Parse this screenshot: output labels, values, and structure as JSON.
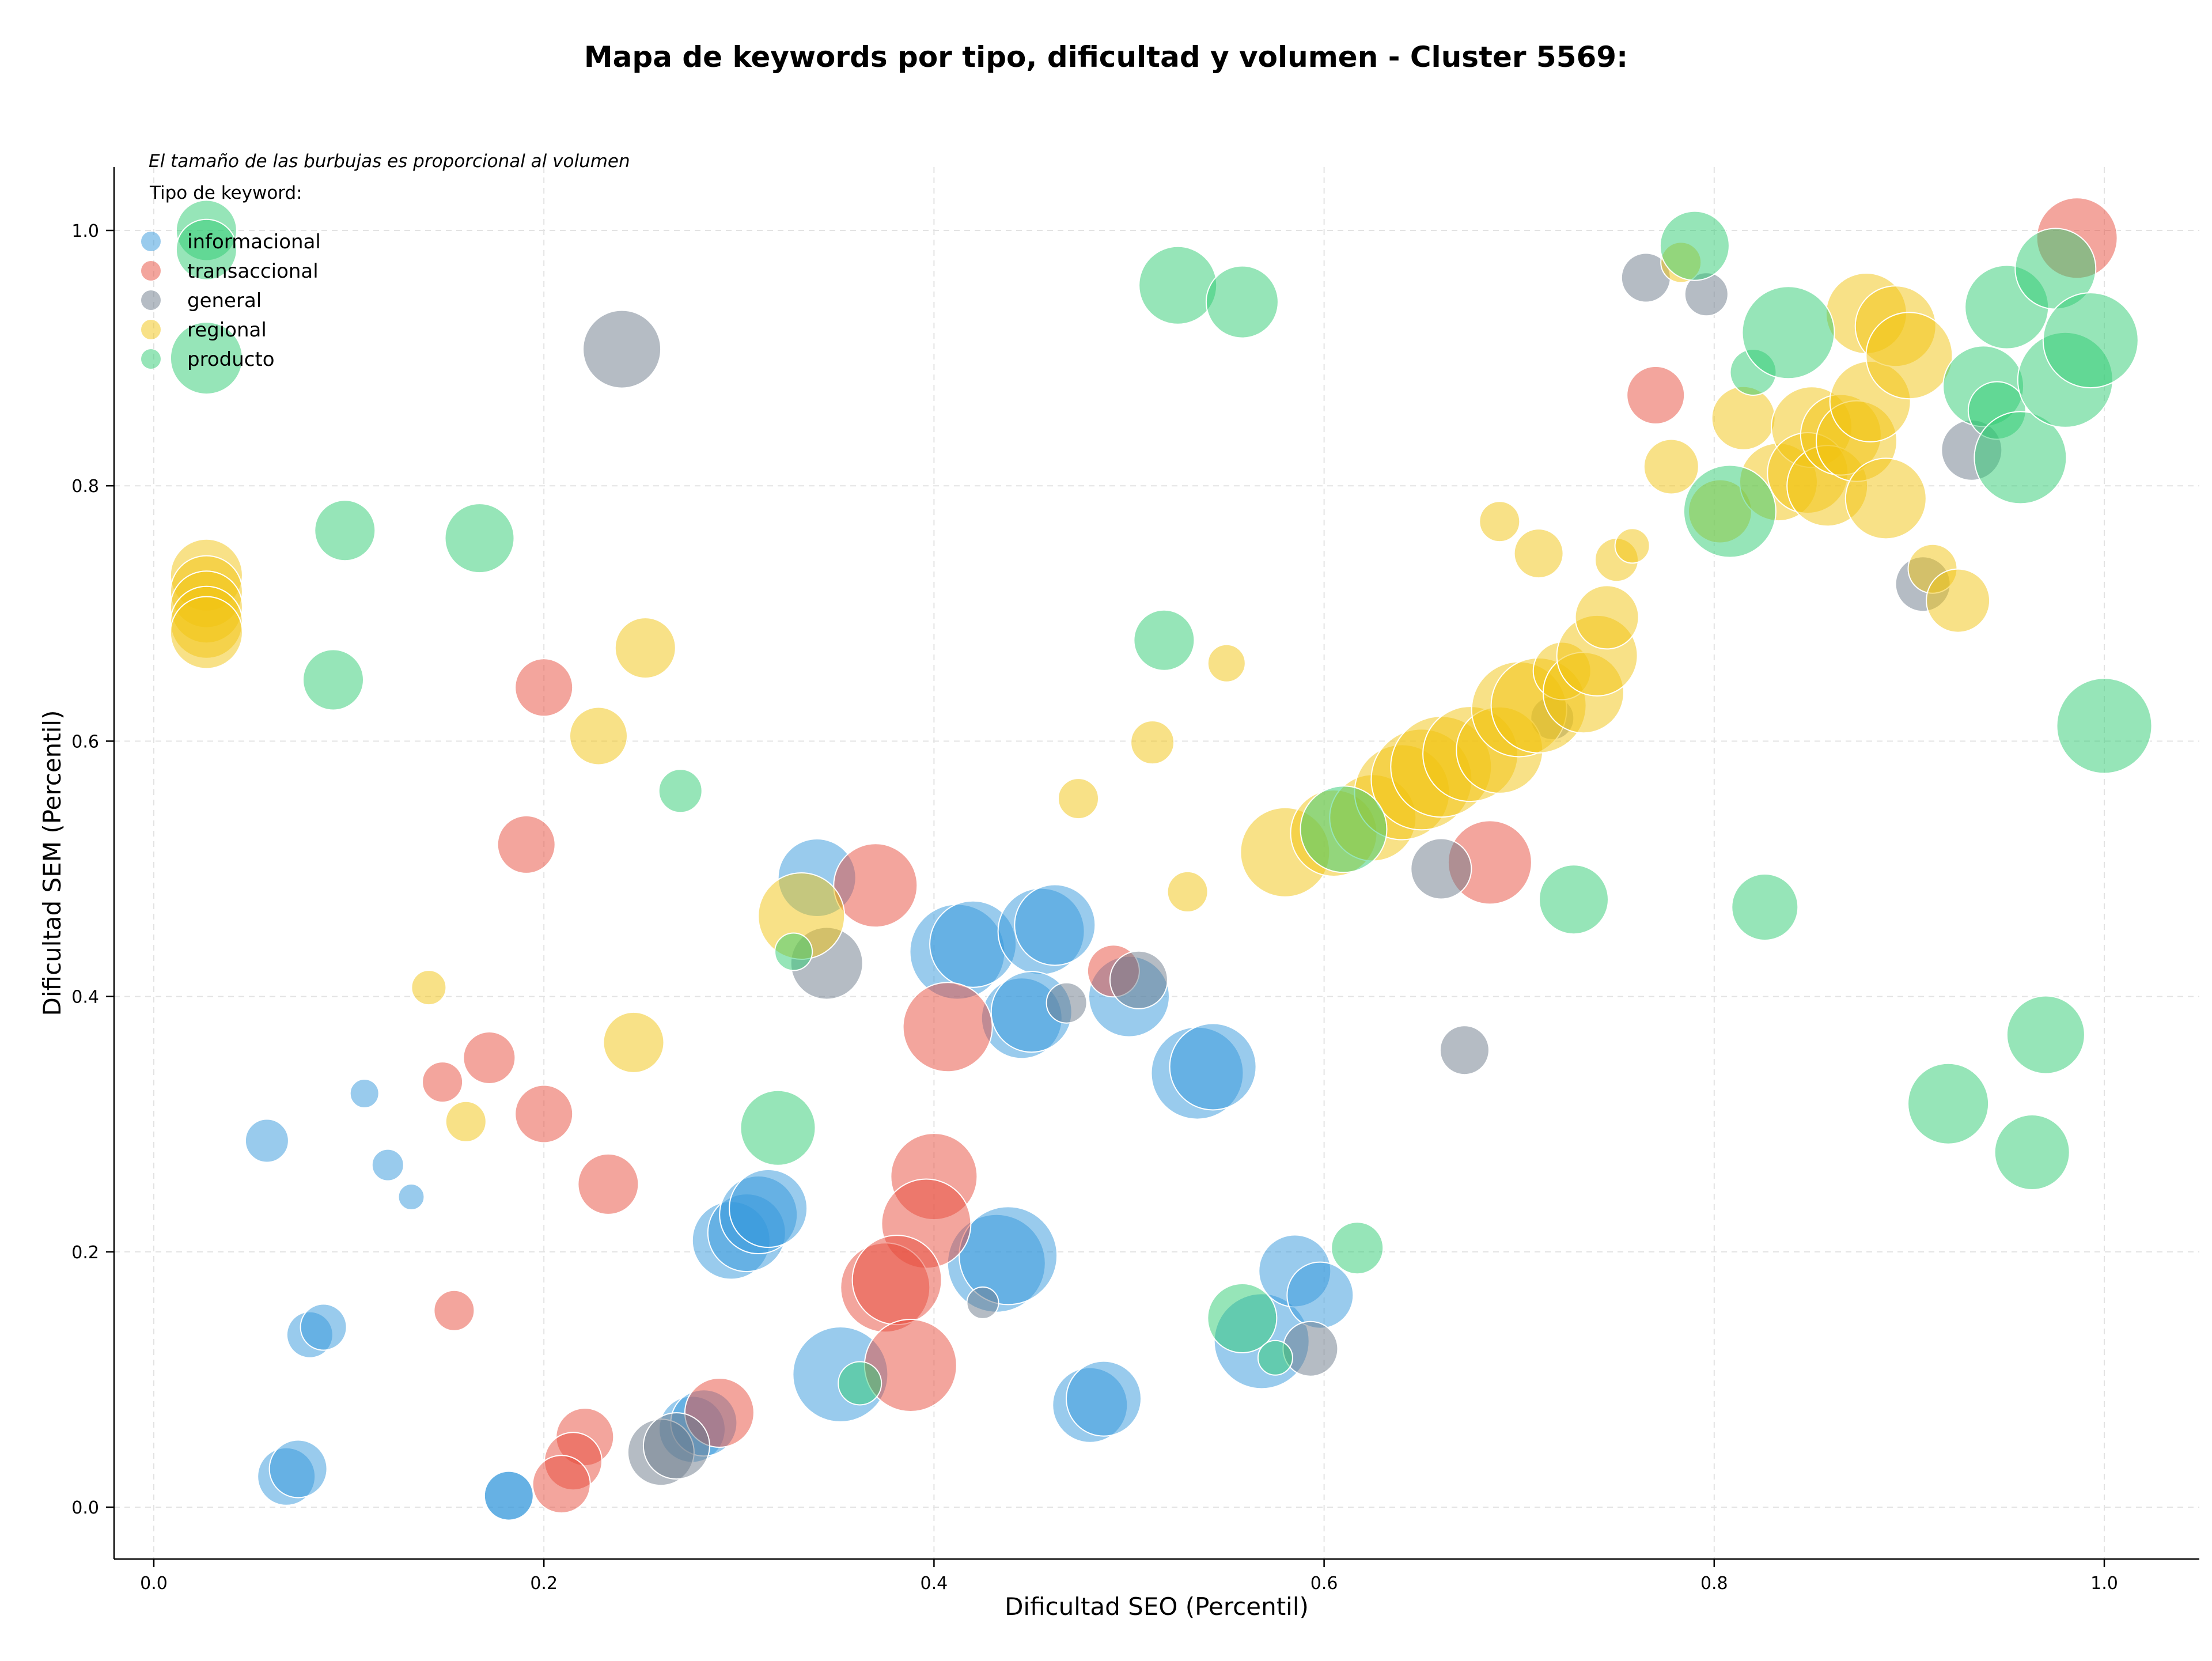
{
  "chart_data": {
    "type": "scatter",
    "title": "Mapa de keywords por tipo, dificultad y volumen - Cluster 5569:",
    "xlabel": "Dificultad SEO (Percentil)",
    "ylabel": "Dificultad SEM (Percentil)",
    "size_note": "El tamaño de las burbujas es proporcional al volumen",
    "legend_title": "Tipo de keyword:",
    "legend_position": "top-left",
    "grid": true,
    "xlim": [
      -0.02,
      1.05
    ],
    "ylim": [
      -0.04,
      1.05
    ],
    "xticks": [
      "0.0",
      "0.2",
      "0.4",
      "0.6",
      "0.8",
      "1.0"
    ],
    "yticks": [
      "0.0",
      "0.2",
      "0.4",
      "0.6",
      "0.8",
      "1.0"
    ],
    "series": [
      {
        "name": "informacional",
        "color": "#3498db",
        "points": [
          [
            0.058,
            0.287,
            15
          ],
          [
            0.108,
            0.324,
            10
          ],
          [
            0.12,
            0.268,
            11
          ],
          [
            0.132,
            0.243,
            9
          ],
          [
            0.08,
            0.135,
            16
          ],
          [
            0.087,
            0.141,
            16
          ],
          [
            0.068,
            0.024,
            20
          ],
          [
            0.074,
            0.03,
            20
          ],
          [
            0.182,
            0.009,
            17
          ],
          [
            0.182,
            0.009,
            17
          ],
          [
            0.34,
            0.493,
            27
          ],
          [
            0.412,
            0.435,
            33
          ],
          [
            0.42,
            0.441,
            30
          ],
          [
            0.455,
            0.451,
            30
          ],
          [
            0.462,
            0.456,
            28
          ],
          [
            0.445,
            0.383,
            28
          ],
          [
            0.45,
            0.388,
            28
          ],
          [
            0.5,
            0.4,
            28
          ],
          [
            0.535,
            0.34,
            32
          ],
          [
            0.543,
            0.345,
            30
          ],
          [
            0.296,
            0.209,
            27
          ],
          [
            0.304,
            0.215,
            27
          ],
          [
            0.31,
            0.229,
            27
          ],
          [
            0.315,
            0.234,
            27
          ],
          [
            0.432,
            0.191,
            34
          ],
          [
            0.438,
            0.197,
            34
          ],
          [
            0.352,
            0.104,
            33
          ],
          [
            0.276,
            0.061,
            23
          ],
          [
            0.282,
            0.066,
            23
          ],
          [
            0.48,
            0.08,
            26
          ],
          [
            0.487,
            0.085,
            26
          ],
          [
            0.568,
            0.13,
            33
          ],
          [
            0.585,
            0.185,
            25
          ],
          [
            0.598,
            0.166,
            23
          ]
        ]
      },
      {
        "name": "transaccional",
        "color": "#e74c3c",
        "points": [
          [
            0.986,
            0.994,
            28
          ],
          [
            0.77,
            0.871,
            20
          ],
          [
            0.2,
            0.642,
            20
          ],
          [
            0.191,
            0.519,
            20
          ],
          [
            0.37,
            0.487,
            29
          ],
          [
            0.172,
            0.352,
            18
          ],
          [
            0.148,
            0.333,
            14
          ],
          [
            0.2,
            0.308,
            20
          ],
          [
            0.233,
            0.253,
            21
          ],
          [
            0.154,
            0.154,
            14
          ],
          [
            0.407,
            0.376,
            31
          ],
          [
            0.4,
            0.259,
            30
          ],
          [
            0.396,
            0.222,
            31
          ],
          [
            0.375,
            0.172,
            31
          ],
          [
            0.381,
            0.178,
            31
          ],
          [
            0.388,
            0.111,
            32
          ],
          [
            0.221,
            0.055,
            20
          ],
          [
            0.215,
            0.036,
            20
          ],
          [
            0.209,
            0.018,
            20
          ],
          [
            0.29,
            0.074,
            24
          ],
          [
            0.492,
            0.42,
            18
          ],
          [
            0.685,
            0.505,
            29
          ]
        ]
      },
      {
        "name": "general",
        "color": "#6c7a89",
        "points": [
          [
            0.24,
            0.907,
            27
          ],
          [
            0.345,
            0.426,
            25
          ],
          [
            0.505,
            0.413,
            20
          ],
          [
            0.468,
            0.395,
            14
          ],
          [
            0.425,
            0.16,
            11
          ],
          [
            0.26,
            0.043,
            23
          ],
          [
            0.268,
            0.048,
            23
          ],
          [
            0.593,
            0.124,
            19
          ],
          [
            0.66,
            0.5,
            21
          ],
          [
            0.672,
            0.358,
            17
          ],
          [
            0.717,
            0.618,
            15
          ],
          [
            0.765,
            0.963,
            17
          ],
          [
            0.796,
            0.95,
            15
          ],
          [
            0.932,
            0.828,
            21
          ],
          [
            0.907,
            0.723,
            19
          ]
        ]
      },
      {
        "name": "regional",
        "color": "#f1c40f",
        "points": [
          [
            0.027,
            0.73,
            25
          ],
          [
            0.027,
            0.717,
            25
          ],
          [
            0.027,
            0.705,
            25
          ],
          [
            0.027,
            0.693,
            25
          ],
          [
            0.027,
            0.685,
            25
          ],
          [
            0.141,
            0.407,
            12
          ],
          [
            0.16,
            0.302,
            14
          ],
          [
            0.228,
            0.604,
            20
          ],
          [
            0.252,
            0.673,
            21
          ],
          [
            0.246,
            0.364,
            21
          ],
          [
            0.332,
            0.463,
            30
          ],
          [
            0.474,
            0.555,
            14
          ],
          [
            0.512,
            0.599,
            15
          ],
          [
            0.53,
            0.482,
            14
          ],
          [
            0.55,
            0.661,
            13
          ],
          [
            0.58,
            0.513,
            31
          ],
          [
            0.605,
            0.528,
            30
          ],
          [
            0.625,
            0.54,
            30
          ],
          [
            0.64,
            0.56,
            33
          ],
          [
            0.65,
            0.57,
            35
          ],
          [
            0.66,
            0.58,
            35
          ],
          [
            0.675,
            0.59,
            33
          ],
          [
            0.69,
            0.593,
            30
          ],
          [
            0.7,
            0.625,
            33
          ],
          [
            0.71,
            0.628,
            33
          ],
          [
            0.722,
            0.655,
            20
          ],
          [
            0.733,
            0.638,
            28
          ],
          [
            0.74,
            0.667,
            28
          ],
          [
            0.745,
            0.697,
            22
          ],
          [
            0.75,
            0.742,
            15
          ],
          [
            0.758,
            0.753,
            12
          ],
          [
            0.69,
            0.772,
            14
          ],
          [
            0.71,
            0.747,
            17
          ],
          [
            0.778,
            0.815,
            19
          ],
          [
            0.783,
            0.975,
            14
          ],
          [
            0.803,
            0.78,
            22
          ],
          [
            0.815,
            0.853,
            22
          ],
          [
            0.833,
            0.803,
            27
          ],
          [
            0.85,
            0.846,
            28
          ],
          [
            0.848,
            0.81,
            28
          ],
          [
            0.858,
            0.8,
            28
          ],
          [
            0.865,
            0.84,
            28
          ],
          [
            0.873,
            0.835,
            28
          ],
          [
            0.88,
            0.866,
            28
          ],
          [
            0.878,
            0.935,
            28
          ],
          [
            0.893,
            0.925,
            28
          ],
          [
            0.9,
            0.902,
            30
          ],
          [
            0.888,
            0.79,
            28
          ],
          [
            0.912,
            0.735,
            17
          ],
          [
            0.925,
            0.71,
            22
          ]
        ]
      },
      {
        "name": "producto",
        "color": "#2ecc71",
        "points": [
          [
            0.027,
            1.0,
            21
          ],
          [
            0.027,
            0.985,
            21
          ],
          [
            0.027,
            0.9,
            25
          ],
          [
            0.098,
            0.765,
            21
          ],
          [
            0.092,
            0.648,
            21
          ],
          [
            0.167,
            0.759,
            24
          ],
          [
            0.27,
            0.561,
            15
          ],
          [
            0.328,
            0.435,
            13
          ],
          [
            0.32,
            0.297,
            26
          ],
          [
            0.362,
            0.097,
            15
          ],
          [
            0.525,
            0.957,
            27
          ],
          [
            0.558,
            0.944,
            25
          ],
          [
            0.518,
            0.679,
            21
          ],
          [
            0.558,
            0.148,
            24
          ],
          [
            0.575,
            0.117,
            12
          ],
          [
            0.617,
            0.203,
            18
          ],
          [
            0.61,
            0.531,
            30
          ],
          [
            0.728,
            0.476,
            24
          ],
          [
            0.79,
            0.988,
            24
          ],
          [
            0.808,
            0.78,
            32
          ],
          [
            0.82,
            0.889,
            16
          ],
          [
            0.826,
            0.47,
            23
          ],
          [
            0.838,
            0.92,
            32
          ],
          [
            0.95,
            0.94,
            29
          ],
          [
            0.938,
            0.878,
            28
          ],
          [
            0.945,
            0.859,
            20
          ],
          [
            0.957,
            0.822,
            32
          ],
          [
            0.975,
            0.97,
            28
          ],
          [
            0.98,
            0.883,
            33
          ],
          [
            0.993,
            0.914,
            33
          ],
          [
            1.0,
            0.612,
            33
          ],
          [
            0.97,
            0.37,
            27
          ],
          [
            0.92,
            0.316,
            28
          ],
          [
            0.963,
            0.278,
            26
          ]
        ]
      }
    ]
  }
}
